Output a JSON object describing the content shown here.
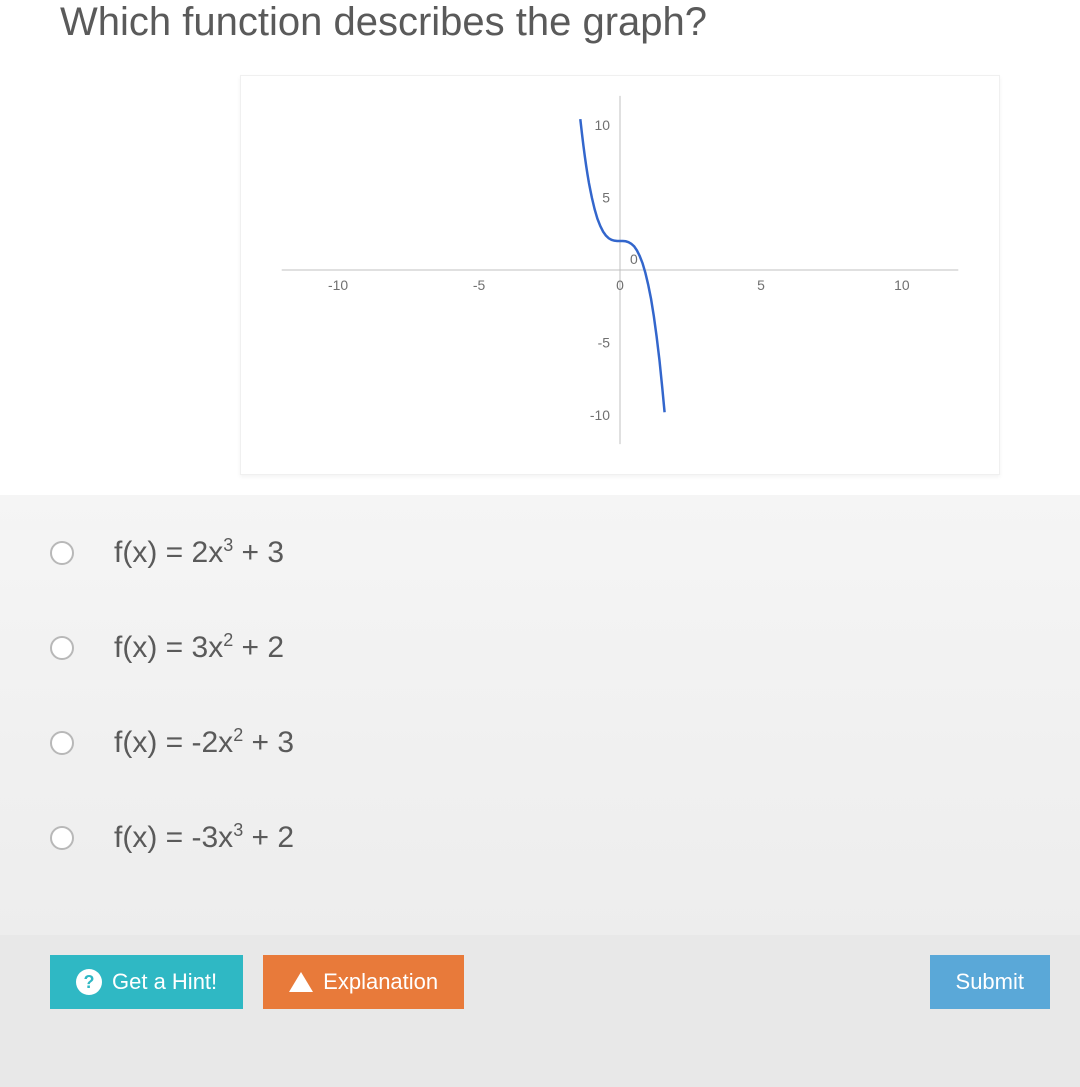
{
  "question": {
    "title": "Which function describes the graph?"
  },
  "chart": {
    "type": "line",
    "xlim": [
      -12,
      12
    ],
    "ylim": [
      -12,
      12
    ],
    "xticks": [
      -10,
      -5,
      0,
      5,
      10
    ],
    "yticks": [
      -10,
      -5,
      0,
      5,
      10
    ],
    "xtick_labels": [
      "-10",
      "-5",
      "0",
      "5",
      "10"
    ],
    "ytick_labels": [
      "-10",
      "-5",
      "0",
      "5",
      "10"
    ],
    "axis_color": "#c0c0c0",
    "tick_label_color": "#707070",
    "tick_fontsize": 14,
    "background_color": "#ffffff",
    "series": {
      "color": "#3366cc",
      "line_width": 2.5,
      "points": [
        [
          -1.41,
          10.4
        ],
        [
          -1.35,
          9.38
        ],
        [
          -1.3,
          8.59
        ],
        [
          -1.25,
          7.86
        ],
        [
          -1.2,
          7.18
        ],
        [
          -1.15,
          6.56
        ],
        [
          -1.1,
          5.99
        ],
        [
          -1.05,
          5.47
        ],
        [
          -1.0,
          5.0
        ],
        [
          -0.9,
          4.19
        ],
        [
          -0.8,
          3.54
        ],
        [
          -0.7,
          3.03
        ],
        [
          -0.6,
          2.65
        ],
        [
          -0.5,
          2.38
        ],
        [
          -0.4,
          2.19
        ],
        [
          -0.3,
          2.08
        ],
        [
          -0.2,
          2.02
        ],
        [
          -0.1,
          2.0
        ],
        [
          0.0,
          2.0
        ],
        [
          0.1,
          2.0
        ],
        [
          0.2,
          1.98
        ],
        [
          0.3,
          1.92
        ],
        [
          0.4,
          1.81
        ],
        [
          0.5,
          1.63
        ],
        [
          0.6,
          1.35
        ],
        [
          0.7,
          0.97
        ],
        [
          0.8,
          0.46
        ],
        [
          0.9,
          -0.19
        ],
        [
          1.0,
          -1.0
        ],
        [
          1.1,
          -1.99
        ],
        [
          1.2,
          -3.18
        ],
        [
          1.3,
          -4.59
        ],
        [
          1.4,
          -6.23
        ],
        [
          1.5,
          -8.13
        ],
        [
          1.58,
          -9.8
        ]
      ]
    }
  },
  "options": [
    {
      "html": "f(x) = 2x<sup>3</sup> + 3"
    },
    {
      "html": "f(x) = 3x<sup>2</sup> + 2"
    },
    {
      "html": "f(x) = -2x<sup>2</sup> + 3"
    },
    {
      "html": "f(x) = -3x<sup>3</sup> + 2"
    }
  ],
  "buttons": {
    "hint": "Get a Hint!",
    "explanation": "Explanation",
    "submit": "Submit"
  },
  "colors": {
    "hint_bg": "#2fb8c4",
    "explanation_bg": "#e87a3a",
    "submit_bg": "#5aa8d8"
  }
}
